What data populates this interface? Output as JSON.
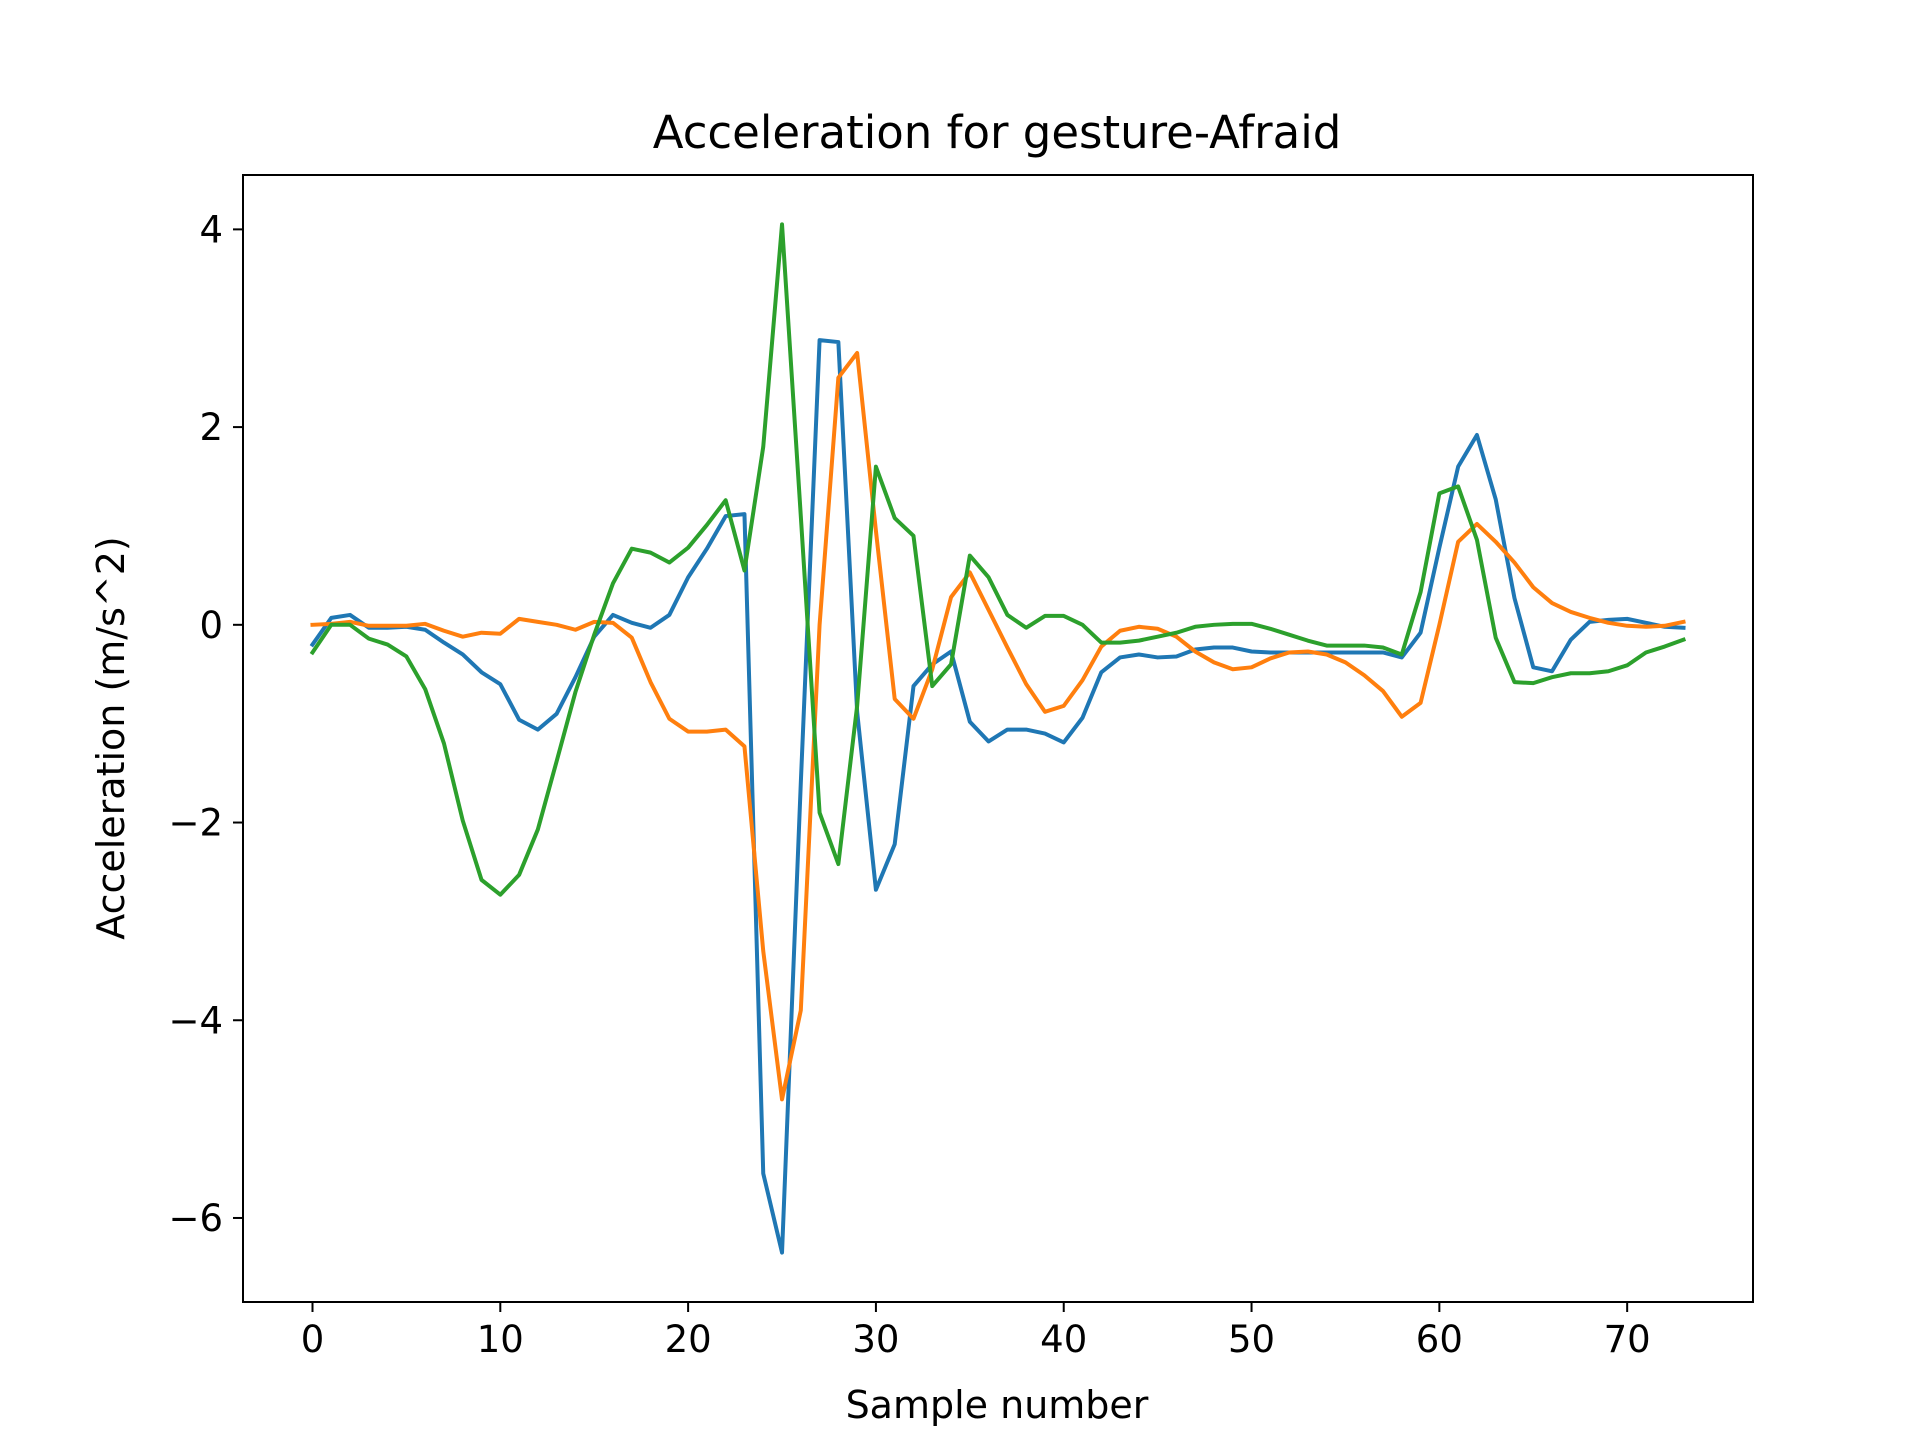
{
  "chart_data": {
    "type": "line",
    "title": "Acceleration for gesture-Afraid",
    "xlabel": "Sample number",
    "ylabel": "Acceleration (m/s^2)",
    "xlim": [
      -3.7,
      76.7
    ],
    "ylim": [
      -6.85,
      4.55
    ],
    "xticks": [
      0,
      10,
      20,
      30,
      40,
      50,
      60,
      70
    ],
    "yticks": [
      -6,
      -4,
      -2,
      0,
      2,
      4
    ],
    "xtick_labels": [
      "0",
      "10",
      "20",
      "30",
      "40",
      "50",
      "60",
      "70"
    ],
    "ytick_labels": [
      "−6",
      "−4",
      "−2",
      "0",
      "2",
      "4"
    ],
    "grid": false,
    "x": [
      0,
      1,
      2,
      3,
      4,
      5,
      6,
      7,
      8,
      9,
      10,
      11,
      12,
      13,
      14,
      15,
      16,
      17,
      18,
      19,
      20,
      21,
      22,
      23,
      24,
      25,
      26,
      27,
      28,
      29,
      30,
      31,
      32,
      33,
      34,
      35,
      36,
      37,
      38,
      39,
      40,
      41,
      42,
      43,
      44,
      45,
      46,
      47,
      48,
      49,
      50,
      51,
      52,
      53,
      54,
      55,
      56,
      57,
      58,
      59,
      60,
      61,
      62,
      63,
      64,
      65,
      66,
      67,
      68,
      69,
      70,
      71,
      72,
      73
    ],
    "series": [
      {
        "color": "#1f77b4",
        "values": [
          -0.2,
          0.07,
          0.1,
          -0.03,
          -0.03,
          -0.02,
          -0.05,
          -0.18,
          -0.3,
          -0.48,
          -0.6,
          -0.96,
          -1.06,
          -0.9,
          -0.53,
          -0.12,
          0.1,
          0.02,
          -0.03,
          0.1,
          0.48,
          0.77,
          1.1,
          1.12,
          -5.55,
          -6.35,
          -1.6,
          2.88,
          2.86,
          -0.88,
          -2.68,
          -2.22,
          -0.62,
          -0.4,
          -0.27,
          -0.98,
          -1.18,
          -1.06,
          -1.06,
          -1.1,
          -1.19,
          -0.94,
          -0.48,
          -0.33,
          -0.3,
          -0.33,
          -0.32,
          -0.25,
          -0.23,
          -0.23,
          -0.27,
          -0.28,
          -0.28,
          -0.28,
          -0.28,
          -0.28,
          -0.28,
          -0.28,
          -0.33,
          -0.08,
          0.78,
          1.6,
          1.92,
          1.27,
          0.27,
          -0.43,
          -0.47,
          -0.15,
          0.03,
          0.05,
          0.06,
          0.02,
          -0.02,
          -0.03
        ]
      },
      {
        "color": "#ff7f0e",
        "values": [
          0.0,
          0.01,
          0.03,
          -0.01,
          -0.01,
          -0.01,
          0.01,
          -0.06,
          -0.12,
          -0.08,
          -0.09,
          0.06,
          0.03,
          0.0,
          -0.05,
          0.03,
          0.02,
          -0.13,
          -0.58,
          -0.95,
          -1.08,
          -1.08,
          -1.06,
          -1.23,
          -3.3,
          -4.8,
          -3.9,
          0.0,
          2.5,
          2.75,
          0.95,
          -0.75,
          -0.95,
          -0.45,
          0.28,
          0.53,
          0.15,
          -0.23,
          -0.6,
          -0.88,
          -0.82,
          -0.56,
          -0.22,
          -0.06,
          -0.02,
          -0.04,
          -0.12,
          -0.27,
          -0.38,
          -0.45,
          -0.43,
          -0.34,
          -0.28,
          -0.27,
          -0.3,
          -0.38,
          -0.51,
          -0.67,
          -0.93,
          -0.79,
          0.0,
          0.84,
          1.02,
          0.84,
          0.63,
          0.38,
          0.22,
          0.13,
          0.07,
          0.02,
          -0.01,
          -0.02,
          -0.01,
          0.03
        ]
      },
      {
        "color": "#2ca02c",
        "values": [
          -0.28,
          0.0,
          0.0,
          -0.14,
          -0.2,
          -0.32,
          -0.65,
          -1.2,
          -1.98,
          -2.58,
          -2.73,
          -2.53,
          -2.07,
          -1.38,
          -0.68,
          -0.1,
          0.42,
          0.77,
          0.73,
          0.63,
          0.78,
          1.01,
          1.26,
          0.55,
          1.8,
          4.05,
          1.1,
          -1.9,
          -2.42,
          -0.82,
          1.6,
          1.08,
          0.9,
          -0.62,
          -0.4,
          0.7,
          0.48,
          0.1,
          -0.03,
          0.09,
          0.09,
          0.0,
          -0.18,
          -0.18,
          -0.16,
          -0.12,
          -0.08,
          -0.02,
          0.0,
          0.01,
          0.01,
          -0.04,
          -0.1,
          -0.16,
          -0.21,
          -0.21,
          -0.21,
          -0.23,
          -0.3,
          0.33,
          1.33,
          1.4,
          0.86,
          -0.13,
          -0.58,
          -0.59,
          -0.53,
          -0.49,
          -0.49,
          -0.47,
          -0.41,
          -0.28,
          -0.22,
          -0.15
        ]
      }
    ]
  }
}
